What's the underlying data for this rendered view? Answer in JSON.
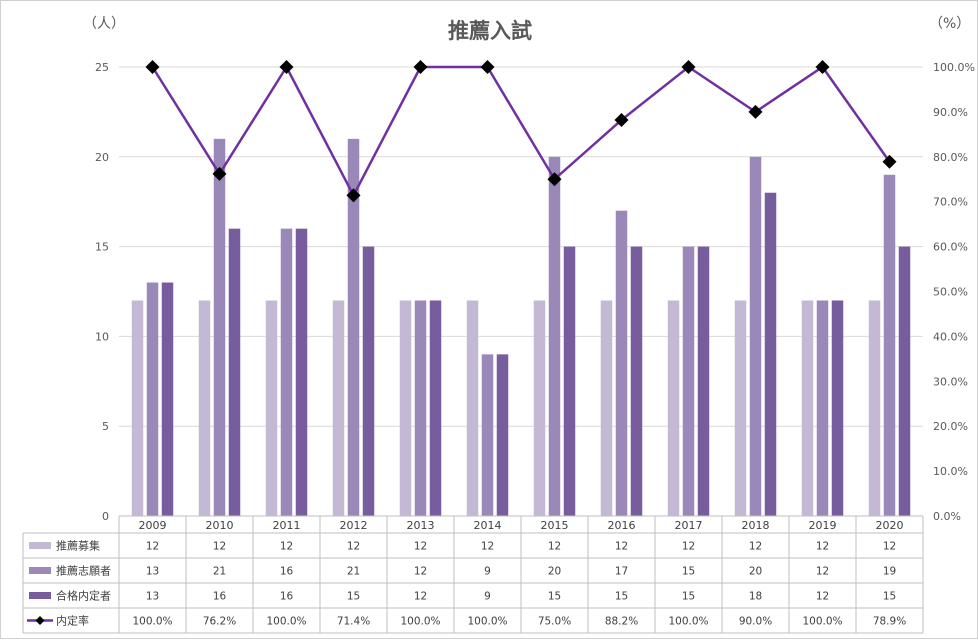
{
  "chart_data": {
    "type": "bar",
    "title": "推薦入試",
    "left_unit": "（人）",
    "right_unit": "（%）",
    "categories": [
      "2009",
      "2010",
      "2011",
      "2012",
      "2013",
      "2014",
      "2015",
      "2016",
      "2017",
      "2018",
      "2019",
      "2020"
    ],
    "ylim": [
      0,
      25
    ],
    "y_ticks": [
      0,
      5,
      10,
      15,
      20,
      25
    ],
    "y2lim": [
      0,
      100
    ],
    "y2_ticks": [
      "0.0%",
      "10.0%",
      "20.0%",
      "30.0%",
      "40.0%",
      "50.0%",
      "60.0%",
      "70.0%",
      "80.0%",
      "90.0%",
      "100.0%"
    ],
    "grid": true,
    "series": [
      {
        "name": "推薦募集",
        "kind": "bar",
        "color": "#c3b9d4",
        "values": [
          12,
          12,
          12,
          12,
          12,
          12,
          12,
          12,
          12,
          12,
          12,
          12
        ]
      },
      {
        "name": "推薦志願者",
        "kind": "bar",
        "color": "#9a88b8",
        "values": [
          13,
          21,
          16,
          21,
          12,
          9,
          20,
          17,
          15,
          20,
          12,
          19
        ]
      },
      {
        "name": "合格内定者",
        "kind": "bar",
        "color": "#785d9e",
        "values": [
          13,
          16,
          16,
          15,
          12,
          9,
          15,
          15,
          15,
          18,
          12,
          15
        ]
      },
      {
        "name": "内定率",
        "kind": "line",
        "axis": "right",
        "color": "#7030a0",
        "marker_color": "#000000",
        "values": [
          100.0,
          76.2,
          100.0,
          71.4,
          100.0,
          100.0,
          75.0,
          88.2,
          100.0,
          90.0,
          100.0,
          78.9
        ],
        "labels": [
          "100.0%",
          "76.2%",
          "100.0%",
          "71.4%",
          "100.0%",
          "100.0%",
          "75.0%",
          "88.2%",
          "100.0%",
          "90.0%",
          "100.0%",
          "78.9%"
        ]
      }
    ],
    "data_table": true
  }
}
